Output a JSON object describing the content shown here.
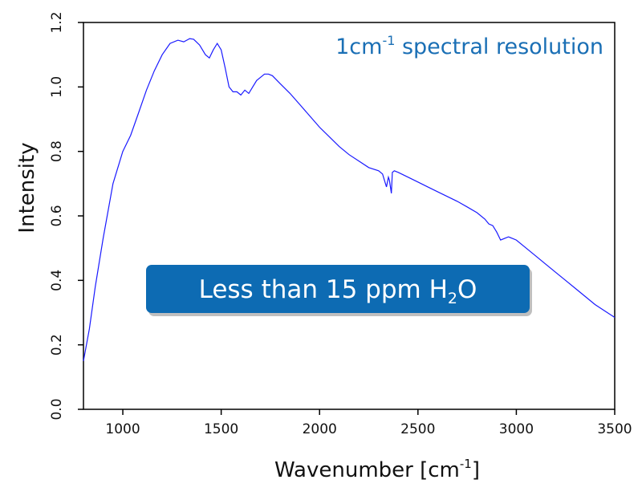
{
  "chart_data": {
    "type": "line",
    "title": "",
    "xlabel": "Wavenumber [cm",
    "xlabel_sup": "-1",
    "xlabel_close": "]",
    "ylabel": "Intensity",
    "xlim": [
      800,
      3500
    ],
    "ylim": [
      0.0,
      1.2
    ],
    "x_ticks": [
      1000,
      1500,
      2000,
      2500,
      3000,
      3500
    ],
    "y_ticks": [
      0.0,
      0.2,
      0.4,
      0.6,
      0.8,
      1.0,
      1.2
    ],
    "x_tick_labels": [
      "1000",
      "1500",
      "2000",
      "2500",
      "3000",
      "3500"
    ],
    "y_tick_labels": [
      "0.0",
      "0.2",
      "0.4",
      "0.6",
      "0.8",
      "1.0",
      "1.2"
    ],
    "grid": false,
    "line_color": "#1a1aff",
    "series": [
      {
        "x": [
          800,
          830,
          860,
          900,
          950,
          1000,
          1040,
          1080,
          1120,
          1160,
          1200,
          1240,
          1280,
          1310,
          1340,
          1360,
          1390,
          1420,
          1440,
          1460,
          1480,
          1500,
          1520,
          1540,
          1560,
          1580,
          1600,
          1620,
          1640,
          1660,
          1680,
          1700,
          1720,
          1740,
          1760,
          1800,
          1850,
          1900,
          1950,
          2000,
          2050,
          2100,
          2150,
          2200,
          2250,
          2300,
          2320,
          2330,
          2340,
          2350,
          2355,
          2360,
          2365,
          2370,
          2380,
          2400,
          2450,
          2500,
          2550,
          2600,
          2650,
          2700,
          2750,
          2800,
          2840,
          2860,
          2880,
          2900,
          2920,
          2940,
          2960,
          2980,
          3000,
          3050,
          3100,
          3150,
          3200,
          3250,
          3300,
          3350,
          3400,
          3450,
          3500
        ],
        "y": [
          0.15,
          0.25,
          0.38,
          0.53,
          0.7,
          0.8,
          0.85,
          0.92,
          0.99,
          1.05,
          1.1,
          1.135,
          1.145,
          1.14,
          1.15,
          1.148,
          1.13,
          1.1,
          1.09,
          1.115,
          1.135,
          1.115,
          1.06,
          1.0,
          0.985,
          0.985,
          0.975,
          0.99,
          0.98,
          1.0,
          1.02,
          1.03,
          1.04,
          1.04,
          1.035,
          1.01,
          0.98,
          0.945,
          0.91,
          0.875,
          0.845,
          0.815,
          0.79,
          0.77,
          0.75,
          0.74,
          0.73,
          0.71,
          0.69,
          0.72,
          0.71,
          0.69,
          0.67,
          0.735,
          0.74,
          0.735,
          0.72,
          0.705,
          0.69,
          0.675,
          0.66,
          0.645,
          0.628,
          0.61,
          0.59,
          0.575,
          0.57,
          0.55,
          0.525,
          0.53,
          0.535,
          0.53,
          0.525,
          0.5,
          0.475,
          0.45,
          0.425,
          0.4,
          0.375,
          0.35,
          0.325,
          0.305,
          0.285
        ]
      }
    ],
    "annotations": [
      {
        "text": "1cm",
        "sup": "-1",
        "rest": " spectral resolution",
        "color": "#1a6fb5"
      },
      {
        "text": "Less than 15 ppm H",
        "sub": "2",
        "rest": "O",
        "badge_color": "#0d6bb3",
        "text_color": "#ffffff"
      }
    ]
  }
}
